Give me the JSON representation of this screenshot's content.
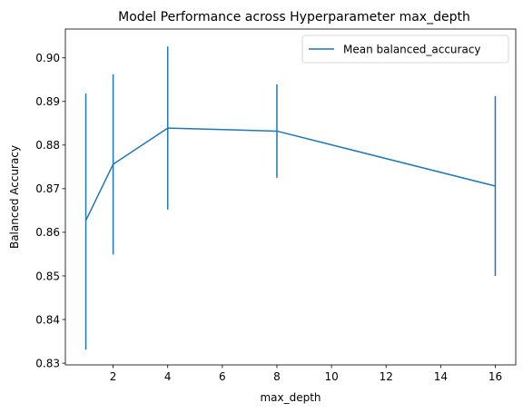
{
  "chart_data": {
    "type": "line",
    "title": "Model Performance across Hyperparameter max_depth",
    "xlabel": "max_depth",
    "ylabel": "Balanced Accuracy",
    "xlim": [
      0.25,
      16.75
    ],
    "ylim": [
      0.8296,
      0.9066
    ],
    "xticks": [
      2,
      4,
      6,
      8,
      10,
      12,
      14,
      16
    ],
    "xtick_labels": [
      "2",
      "4",
      "6",
      "8",
      "10",
      "12",
      "14",
      "16"
    ],
    "yticks": [
      0.83,
      0.84,
      0.85,
      0.86,
      0.87,
      0.88,
      0.89,
      0.9
    ],
    "ytick_labels": [
      "0.83",
      "0.84",
      "0.85",
      "0.86",
      "0.87",
      "0.88",
      "0.89",
      "0.90"
    ],
    "grid": false,
    "legend_position": "top-right",
    "series": [
      {
        "name": "Mean balanced_accuracy",
        "color": "#1f77b4",
        "x": [
          1,
          2,
          4,
          8,
          16
        ],
        "y": [
          0.8627,
          0.8756,
          0.8839,
          0.8832,
          0.8706
        ],
        "error_low": [
          0.8331,
          0.8549,
          0.8652,
          0.8725,
          0.85
        ],
        "error_high": [
          0.8918,
          0.8962,
          0.9026,
          0.8939,
          0.8912
        ]
      }
    ]
  }
}
